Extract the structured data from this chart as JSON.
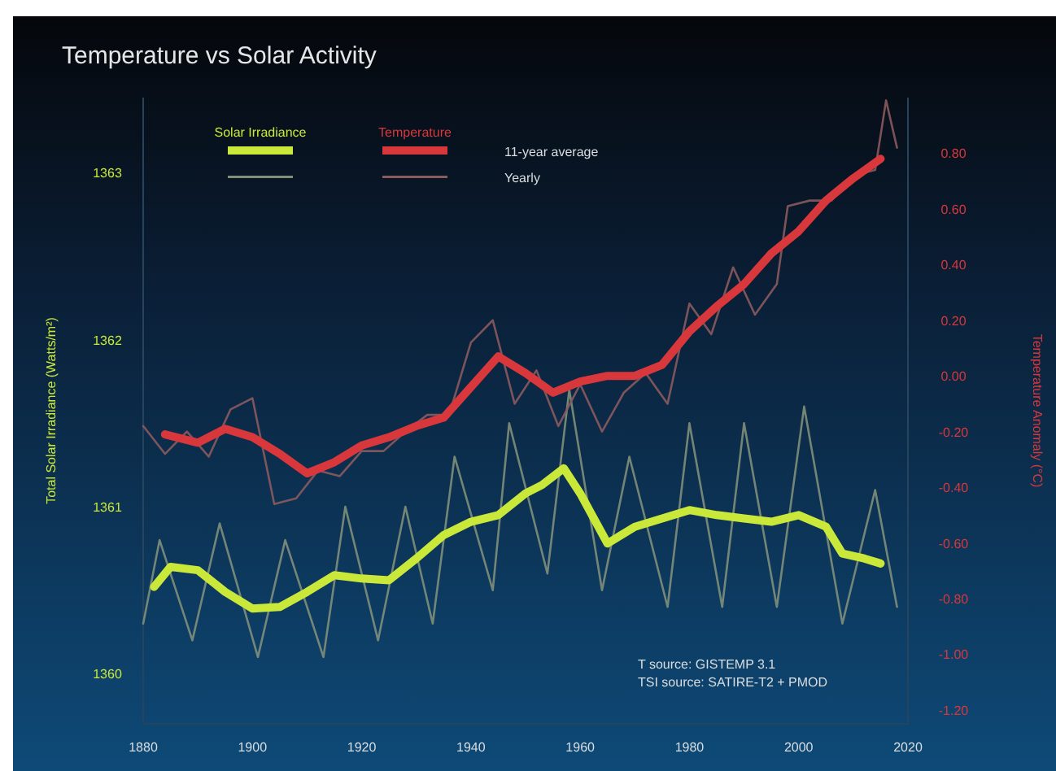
{
  "chart_data": {
    "type": "line",
    "title": "Temperature vs Solar Activity",
    "ylabel": "Total Solar Irradiance (Watts/m²)",
    "y2label": "Temperature Anomaly (°C)",
    "xlim": [
      1880,
      2020
    ],
    "xticks": [
      1880,
      1900,
      1920,
      1940,
      1960,
      1980,
      2000,
      2020
    ],
    "ylim": [
      1359.7,
      1363.45
    ],
    "yticks": [
      1360,
      1361,
      1362,
      1363
    ],
    "y2lim": [
      -1.25,
      1.0
    ],
    "y2ticks": [
      {
        "value": 0.8,
        "label": "0.80"
      },
      {
        "value": 0.6,
        "label": "0.60"
      },
      {
        "value": 0.4,
        "label": "0.40"
      },
      {
        "value": 0.2,
        "label": "0.20"
      },
      {
        "value": 0,
        "label": "0.00"
      },
      {
        "value": -0.2,
        "label": "-0.20"
      },
      {
        "value": -0.4,
        "label": "-0.40"
      },
      {
        "value": -0.6,
        "label": "-0.60"
      },
      {
        "value": -0.8,
        "label": "-0.80"
      },
      {
        "value": -1.0,
        "label": "-1.00"
      },
      {
        "value": -1.2,
        "label": "-1.20"
      }
    ],
    "grid": false,
    "legend": "top left",
    "marker": "none",
    "line_style": "solid",
    "annotations": [
      "11-year average",
      "Yearly",
      "T source: GISTEMP 3.1",
      "TSI source: SATIRE-T2 + PMOD"
    ],
    "series": [
      {
        "color": "#7f8f7a",
        "axis": "y",
        "x": [
          1880,
          1883,
          1889,
          1894,
          1901,
          1906,
          1913,
          1917,
          1923,
          1928,
          1933,
          1937,
          1944,
          1947,
          1954,
          1958,
          1964,
          1969,
          1976,
          1980,
          1986,
          1990,
          1996,
          2001,
          2008,
          2014,
          2018
        ],
        "values": [
          1360.3,
          1360.8,
          1360.2,
          1360.9,
          1360.1,
          1360.8,
          1360.1,
          1361.0,
          1360.2,
          1361.0,
          1360.3,
          1361.3,
          1360.5,
          1361.5,
          1360.6,
          1361.7,
          1360.5,
          1361.3,
          1360.4,
          1361.5,
          1360.4,
          1361.5,
          1360.4,
          1361.6,
          1360.3,
          1361.1,
          1360.4
        ]
      },
      {
        "color": "#8a5a5e",
        "axis": "y2",
        "x": [
          1880,
          1884,
          1888,
          1892,
          1896,
          1900,
          1904,
          1908,
          1912,
          1916,
          1920,
          1924,
          1928,
          1932,
          1936,
          1940,
          1944,
          1948,
          1952,
          1956,
          1960,
          1964,
          1968,
          1972,
          1976,
          1980,
          1984,
          1988,
          1992,
          1996,
          1998,
          2002,
          2006,
          2010,
          2014,
          2016,
          2018
        ],
        "values": [
          -0.18,
          -0.28,
          -0.2,
          -0.29,
          -0.12,
          -0.08,
          -0.46,
          -0.44,
          -0.34,
          -0.36,
          -0.27,
          -0.27,
          -0.2,
          -0.14,
          -0.14,
          0.12,
          0.2,
          -0.1,
          0.02,
          -0.18,
          -0.03,
          -0.2,
          -0.06,
          0.01,
          -0.1,
          0.26,
          0.15,
          0.39,
          0.22,
          0.33,
          0.61,
          0.63,
          0.63,
          0.72,
          0.74,
          0.99,
          0.82
        ]
      },
      {
        "name": "Solar Irradiance",
        "color": "#c9e83a",
        "axis": "y",
        "x": [
          1882,
          1885,
          1890,
          1895,
          1900,
          1905,
          1910,
          1915,
          1920,
          1925,
          1930,
          1935,
          1940,
          1945,
          1950,
          1953,
          1957,
          1960,
          1965,
          1970,
          1975,
          1980,
          1985,
          1990,
          1995,
          2000,
          2005,
          2008,
          2012,
          2015
        ],
        "values": [
          1360.52,
          1360.64,
          1360.62,
          1360.49,
          1360.39,
          1360.4,
          1360.49,
          1360.59,
          1360.57,
          1360.56,
          1360.69,
          1360.83,
          1360.91,
          1360.95,
          1361.08,
          1361.13,
          1361.23,
          1361.08,
          1360.78,
          1360.88,
          1360.93,
          1360.98,
          1360.95,
          1360.93,
          1360.91,
          1360.95,
          1360.88,
          1360.72,
          1360.69,
          1360.66
        ]
      },
      {
        "name": "Temperature",
        "color": "#d8383c",
        "axis": "y2",
        "x": [
          1884,
          1890,
          1895,
          1900,
          1905,
          1910,
          1915,
          1920,
          1925,
          1930,
          1935,
          1940,
          1945,
          1950,
          1955,
          1960,
          1965,
          1970,
          1975,
          1980,
          1985,
          1990,
          1995,
          2000,
          2005,
          2010,
          2015
        ],
        "values": [
          -0.21,
          -0.24,
          -0.19,
          -0.22,
          -0.28,
          -0.35,
          -0.31,
          -0.25,
          -0.22,
          -0.18,
          -0.15,
          -0.04,
          0.07,
          0.01,
          -0.06,
          -0.02,
          0.0,
          0.0,
          0.04,
          0.16,
          0.25,
          0.33,
          0.44,
          0.52,
          0.63,
          0.71,
          0.78
        ]
      }
    ]
  }
}
